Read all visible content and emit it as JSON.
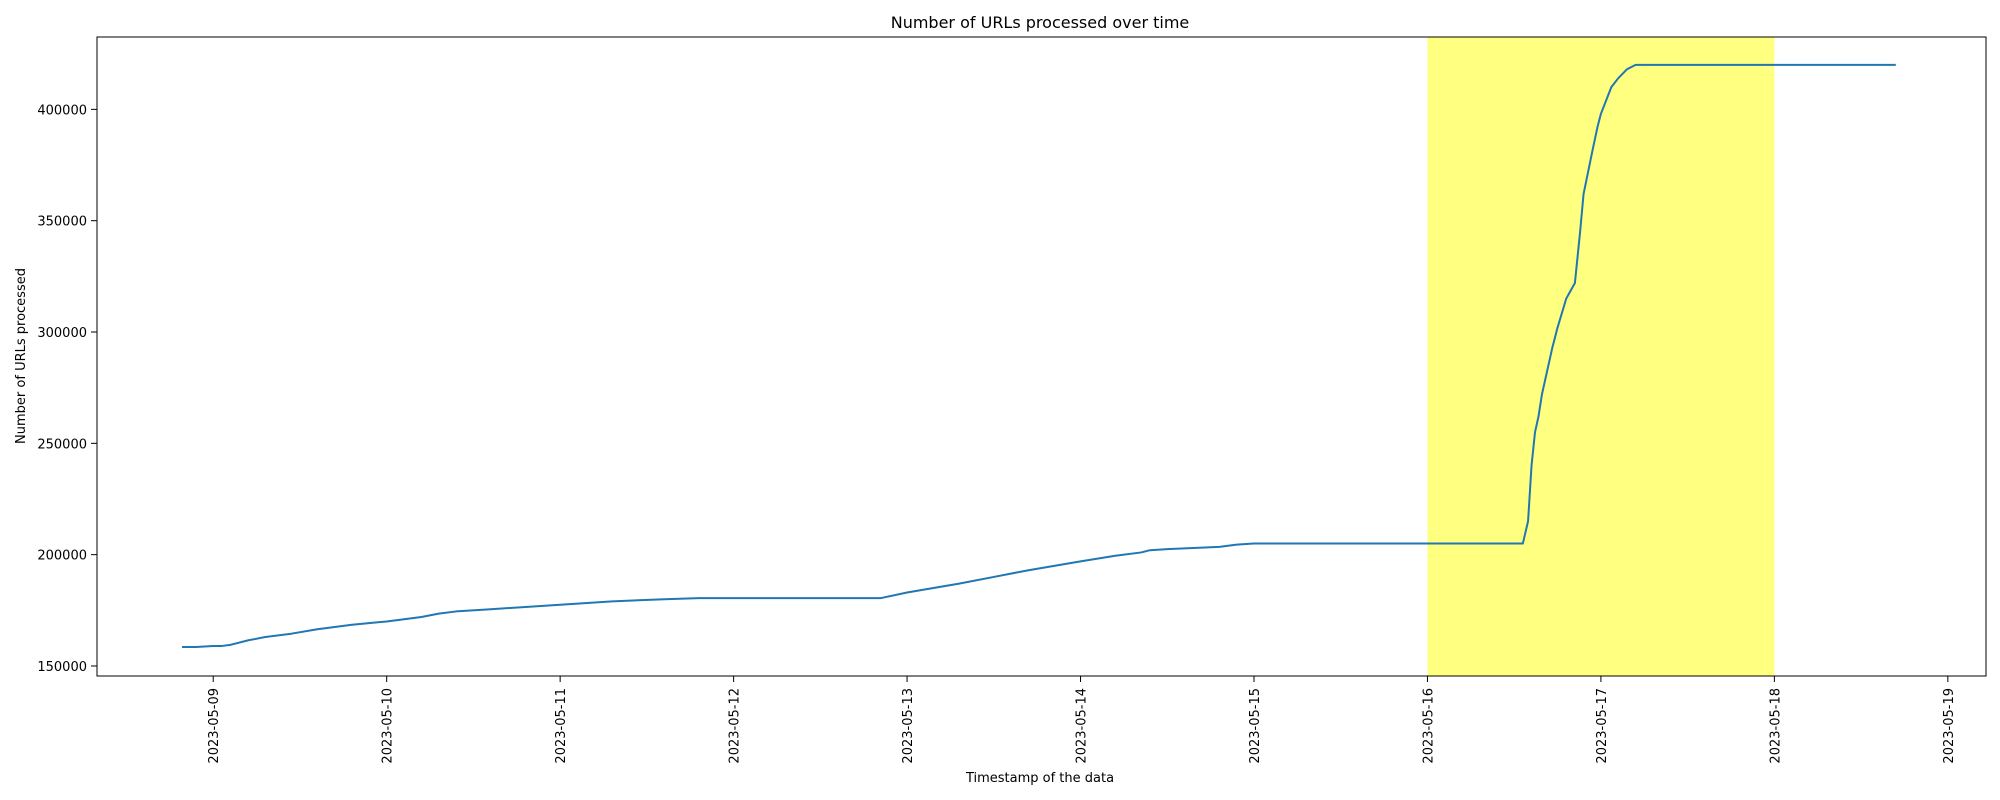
{
  "chart_data": {
    "type": "line",
    "title": "Number of URLs processed over time",
    "xlabel": "Timestamp of the data",
    "ylabel": "Number of URLs processed",
    "xlim": [
      -0.67,
      10.22
    ],
    "ylim": [
      145500,
      432500
    ],
    "x_ticks": [
      {
        "value": 0,
        "label": "2023-05-09"
      },
      {
        "value": 1,
        "label": "2023-05-10"
      },
      {
        "value": 2,
        "label": "2023-05-11"
      },
      {
        "value": 3,
        "label": "2023-05-12"
      },
      {
        "value": 4,
        "label": "2023-05-13"
      },
      {
        "value": 5,
        "label": "2023-05-14"
      },
      {
        "value": 6,
        "label": "2023-05-15"
      },
      {
        "value": 7,
        "label": "2023-05-16"
      },
      {
        "value": 8,
        "label": "2023-05-17"
      },
      {
        "value": 9,
        "label": "2023-05-18"
      },
      {
        "value": 10,
        "label": "2023-05-19"
      }
    ],
    "y_ticks": [
      {
        "value": 150000,
        "label": "150000"
      },
      {
        "value": 200000,
        "label": "200000"
      },
      {
        "value": 250000,
        "label": "250000"
      },
      {
        "value": 300000,
        "label": "300000"
      },
      {
        "value": 350000,
        "label": "350000"
      },
      {
        "value": 400000,
        "label": "400000"
      }
    ],
    "x_unit": "days since 2023-05-09 00:00",
    "highlight": {
      "from": 7,
      "to": 9,
      "color": "#ffff80"
    },
    "series": [
      {
        "name": "URLs processed",
        "color": "#1f77b4",
        "x": [
          -0.18,
          -0.1,
          0.0,
          0.05,
          0.1,
          0.2,
          0.3,
          0.45,
          0.6,
          0.8,
          1.0,
          1.2,
          1.3,
          1.4,
          1.6,
          1.8,
          2.0,
          2.3,
          2.6,
          2.8,
          3.0,
          3.3,
          3.6,
          3.85,
          4.0,
          4.3,
          4.5,
          4.7,
          5.0,
          5.2,
          5.35,
          5.4,
          5.5,
          5.8,
          5.9,
          6.0,
          6.5,
          7.0,
          7.55,
          7.58,
          7.6,
          7.62,
          7.64,
          7.66,
          7.68,
          7.72,
          7.75,
          7.8,
          7.85,
          7.88,
          7.9,
          7.95,
          7.98,
          8.0,
          8.03,
          8.06,
          8.1,
          8.15,
          8.2,
          9.0,
          9.7
        ],
        "y": [
          158500,
          158500,
          159000,
          159000,
          159500,
          161500,
          163000,
          164500,
          166500,
          168500,
          170000,
          172000,
          173500,
          174500,
          175500,
          176500,
          177500,
          179000,
          180000,
          180500,
          180500,
          180500,
          180500,
          180500,
          183000,
          187000,
          190000,
          193000,
          197000,
          199500,
          201000,
          202000,
          202500,
          203500,
          204500,
          205000,
          205000,
          205000,
          205000,
          215000,
          240000,
          255000,
          262000,
          272000,
          279000,
          293000,
          302000,
          315000,
          322000,
          345000,
          362000,
          381000,
          392000,
          398000,
          404000,
          410000,
          414000,
          418000,
          420000,
          420000,
          420000
        ]
      }
    ]
  }
}
